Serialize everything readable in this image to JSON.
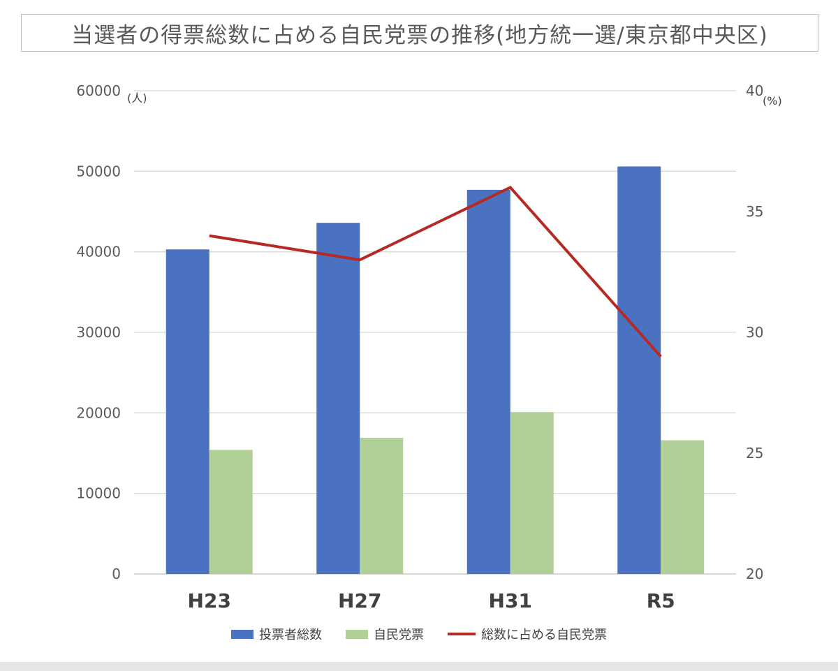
{
  "title": "当選者の得票総数に占める自民党票の推移(地方統一選/東京都中央区)",
  "colors": {
    "total_votes": "#4a72c0",
    "ldp_votes": "#b0d098",
    "share_line": "#b52a25",
    "grid": "#d9d9d9",
    "axis": "#bfbfbf"
  },
  "chart_data": {
    "type": "bar",
    "title": "当選者の得票総数に占める自民党票の推移(地方統一選/東京都中央区)",
    "categories": [
      "H23",
      "H27",
      "H31",
      "R5"
    ],
    "series": [
      {
        "name": "投票者総数",
        "type": "bar",
        "axis": "left",
        "values": [
          40300,
          43600,
          47700,
          50600
        ]
      },
      {
        "name": "自民党票",
        "type": "bar",
        "axis": "left",
        "values": [
          15400,
          16900,
          20100,
          16600
        ]
      },
      {
        "name": "総数に占める自民党票",
        "type": "line",
        "axis": "right",
        "values": [
          34,
          33,
          36,
          29
        ]
      }
    ],
    "y_left": {
      "unit": "(人)",
      "ylim": [
        0,
        60000
      ],
      "ticks": [
        0,
        10000,
        20000,
        30000,
        40000,
        50000,
        60000
      ]
    },
    "y_right": {
      "unit": "(%)",
      "ylim": [
        20,
        40
      ],
      "ticks": [
        20,
        25,
        30,
        35,
        40
      ]
    },
    "grid": true,
    "legend_position": "bottom"
  }
}
